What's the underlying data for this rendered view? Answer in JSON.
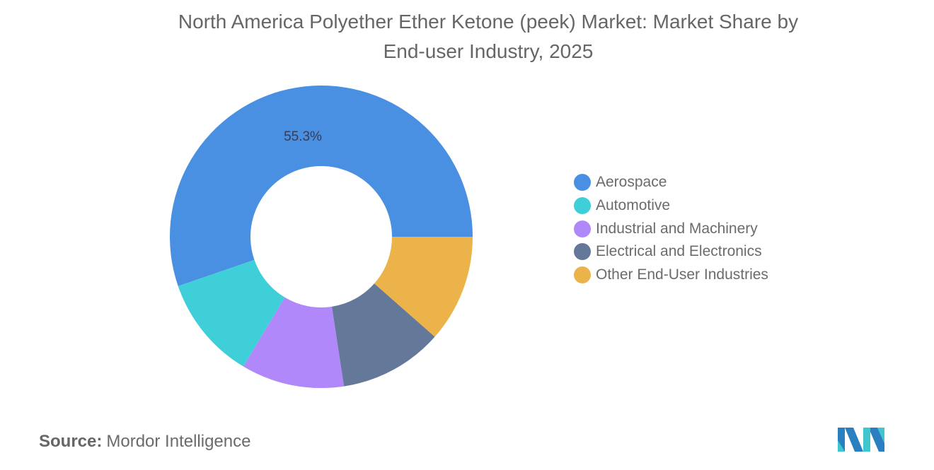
{
  "title_line1": "North America Polyether Ether Ketone (peek) Market: Market Share by",
  "title_line2": "End-user Industry, 2025",
  "source_label": "Source:",
  "source_value": "Mordor Intelligence",
  "logo": "mordor-intelligence-logo",
  "legend": [
    {
      "label": "Aerospace",
      "color": "#4A90E2"
    },
    {
      "label": "Automotive",
      "color": "#3FCFD8"
    },
    {
      "label": "Industrial and Machinery",
      "color": "#B088F9"
    },
    {
      "label": "Electrical and Electronics",
      "color": "#647899"
    },
    {
      "label": "Other End-User Industries",
      "color": "#EBB34A"
    }
  ],
  "chart_data": {
    "type": "pie",
    "subtype": "donut",
    "title": "North America Polyether Ether Ketone (peek) Market: Market Share by End-user Industry, 2025",
    "categories": [
      "Aerospace",
      "Automotive",
      "Industrial and Machinery",
      "Electrical and Electronics",
      "Other End-User Industries"
    ],
    "values": [
      55.3,
      11.1,
      11.0,
      11.1,
      11.5
    ],
    "colors": [
      "#4A90E2",
      "#3FCFD8",
      "#B088F9",
      "#647899",
      "#EBB34A"
    ],
    "data_labels": [
      {
        "category": "Aerospace",
        "text": "55.3%"
      }
    ],
    "legend_position": "right",
    "unit": "%"
  }
}
